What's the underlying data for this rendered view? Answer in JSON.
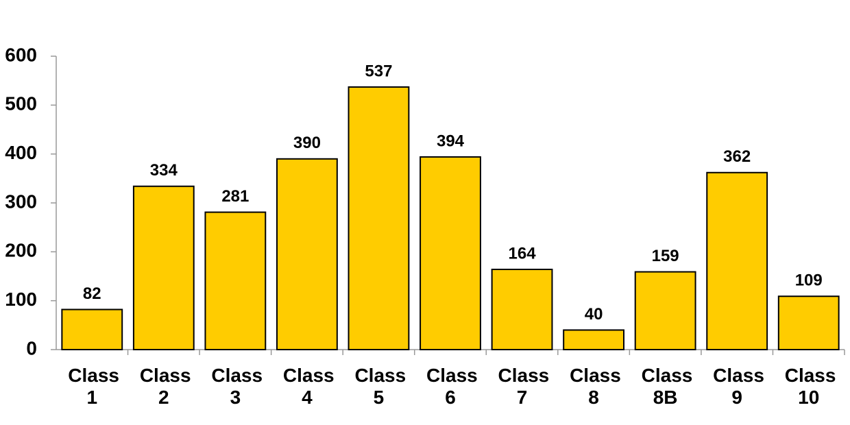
{
  "chart_data": {
    "type": "bar",
    "categories": [
      "Class 1",
      "Class 2",
      "Class 3",
      "Class 4",
      "Class 5",
      "Class 6",
      "Class 7",
      "Class 8",
      "Class 8B",
      "Class 9",
      "Class 10"
    ],
    "values": [
      82,
      334,
      281,
      390,
      537,
      394,
      164,
      40,
      159,
      362,
      109
    ],
    "color": "#ffcc00",
    "ylim": [
      0,
      600
    ],
    "yticks": [
      0,
      100,
      200,
      300,
      400,
      500,
      600
    ],
    "grid": false
  }
}
